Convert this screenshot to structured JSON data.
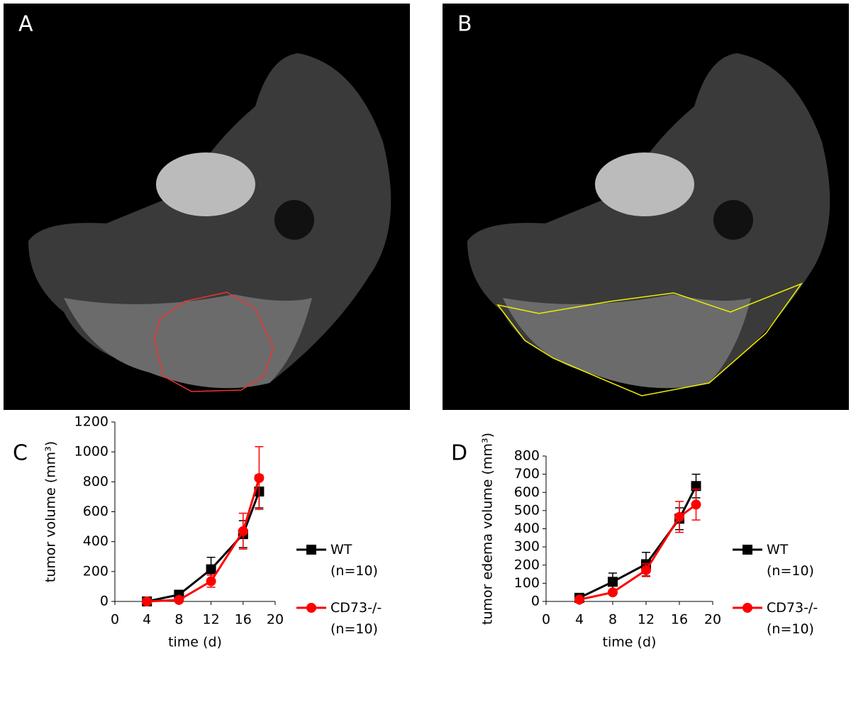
{
  "panels": [
    {
      "label": "A"
    },
    {
      "label": "B"
    }
  ],
  "chart_data": [
    {
      "type": "line",
      "label": "C",
      "xlabel": "time (d)",
      "ylabel": "tumor volume (mm³)",
      "x": [
        4,
        8,
        12,
        16,
        18
      ],
      "xlim": [
        0,
        20
      ],
      "xticks": [
        0,
        4,
        8,
        12,
        16,
        20
      ],
      "ylim": [
        0,
        1200
      ],
      "yticks": [
        0,
        200,
        400,
        600,
        800,
        1000,
        1200
      ],
      "series": [
        {
          "name": "WT (n=10)",
          "color": "#000000",
          "marker": "square",
          "values": [
            0,
            45,
            215,
            450,
            735
          ],
          "errors": [
            5,
            10,
            80,
            90,
            110
          ]
        },
        {
          "name": "CD73-/- (n=10)",
          "color": "#ff0000",
          "marker": "circle",
          "values": [
            0,
            10,
            135,
            470,
            825
          ],
          "errors": [
            2,
            5,
            40,
            120,
            210
          ]
        }
      ]
    },
    {
      "type": "line",
      "label": "D",
      "xlabel": "time (d)",
      "ylabel": "tumor edema volume (mm³)",
      "x": [
        4,
        8,
        12,
        16,
        18
      ],
      "xlim": [
        0,
        20
      ],
      "xticks": [
        0,
        4,
        8,
        12,
        16,
        20
      ],
      "ylim": [
        0,
        800
      ],
      "yticks": [
        0,
        100,
        200,
        300,
        400,
        500,
        600,
        700,
        800
      ],
      "series": [
        {
          "name": "WT (n=10)",
          "color": "#000000",
          "marker": "square",
          "values": [
            20,
            108,
            205,
            455,
            635
          ],
          "errors": [
            5,
            48,
            65,
            60,
            65
          ]
        },
        {
          "name": "CD73-/- (n=10)",
          "color": "#ff0000",
          "marker": "circle",
          "values": [
            10,
            50,
            172,
            465,
            533
          ],
          "errors": [
            5,
            10,
            35,
            85,
            85
          ]
        }
      ]
    }
  ]
}
